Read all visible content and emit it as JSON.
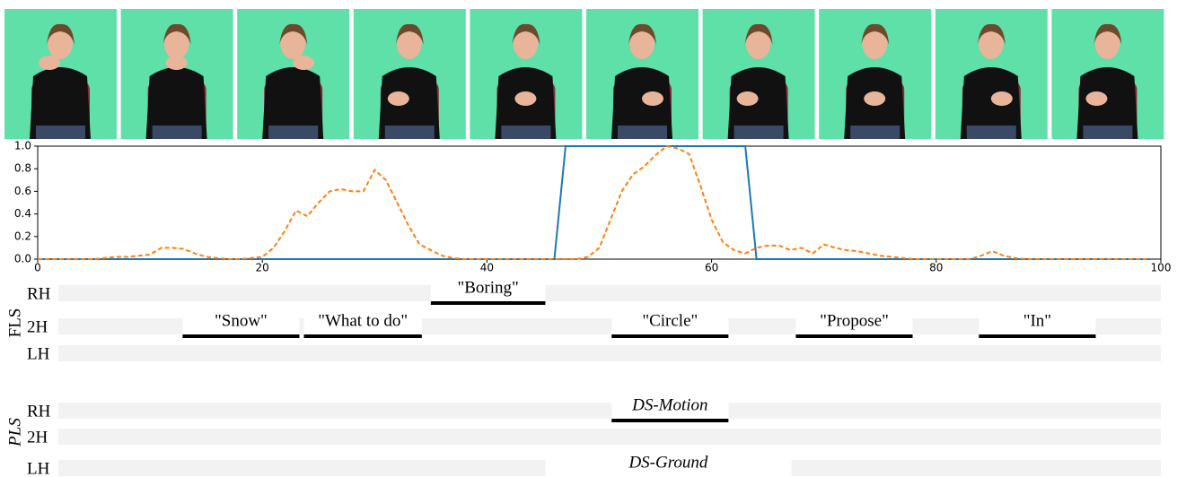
{
  "chart_data": {
    "type": "line",
    "x": [
      0,
      1,
      2,
      3,
      4,
      5,
      6,
      7,
      8,
      9,
      10,
      11,
      12,
      13,
      14,
      15,
      16,
      17,
      18,
      19,
      20,
      21,
      22,
      23,
      24,
      25,
      26,
      27,
      28,
      29,
      30,
      31,
      32,
      33,
      34,
      35,
      36,
      37,
      38,
      39,
      40,
      41,
      42,
      43,
      44,
      45,
      46,
      47,
      48,
      49,
      50,
      51,
      52,
      53,
      54,
      55,
      56,
      57,
      58,
      59,
      60,
      61,
      62,
      63,
      64,
      65,
      66,
      67,
      68,
      69,
      70,
      71,
      72,
      73,
      74,
      75,
      76,
      77,
      78,
      79,
      80,
      81,
      82,
      83,
      84,
      85,
      86,
      87,
      88,
      89,
      90,
      91,
      92,
      93,
      94,
      95,
      96,
      97,
      98,
      99
    ],
    "xlim": [
      0,
      100
    ],
    "xticks": [
      0,
      20,
      40,
      60,
      80,
      100
    ],
    "ylim": [
      0,
      1
    ],
    "yticks": [
      {
        "value": 0,
        "label": "0.0"
      },
      0.2,
      0.4,
      0.6,
      0.8,
      {
        "value": 1,
        "label": "1.0"
      }
    ],
    "series": [
      {
        "color": "#1f77b4",
        "dash": false,
        "values": [
          0,
          0,
          0,
          0,
          0,
          0,
          0,
          0,
          0,
          0,
          0,
          0,
          0,
          0,
          0,
          0,
          0,
          0,
          0,
          0,
          0,
          0,
          0,
          0,
          0,
          0,
          0,
          0,
          0,
          0,
          0,
          0,
          0,
          0,
          0,
          0,
          0,
          0,
          0,
          0,
          0,
          0,
          0,
          0,
          0,
          0,
          0,
          1,
          1,
          1,
          1,
          1,
          1,
          1,
          1,
          1,
          1,
          1,
          1,
          1,
          1,
          1,
          1,
          1,
          0,
          0,
          0,
          0,
          0,
          0,
          0,
          0,
          0,
          0,
          0,
          0,
          0,
          0,
          0,
          0,
          0,
          0,
          0,
          0,
          0,
          0,
          0,
          0,
          0,
          0,
          0,
          0,
          0,
          0,
          0,
          0,
          0,
          0,
          0,
          0
        ]
      },
      {
        "color": "#ff7f0e",
        "dash": true,
        "values": [
          0,
          0,
          0,
          0,
          0,
          0,
          0.01,
          0.02,
          0.02,
          0.03,
          0.04,
          0.1,
          0.1,
          0.09,
          0.05,
          0.02,
          0.01,
          0,
          0,
          0.01,
          0.02,
          0.1,
          0.25,
          0.43,
          0.38,
          0.5,
          0.6,
          0.62,
          0.6,
          0.6,
          0.79,
          0.7,
          0.5,
          0.3,
          0.13,
          0.08,
          0.03,
          0.01,
          0,
          0,
          0,
          0,
          0,
          0,
          0,
          0,
          0,
          0,
          0,
          0.02,
          0.1,
          0.35,
          0.6,
          0.75,
          0.82,
          0.92,
          1,
          0.98,
          0.93,
          0.65,
          0.35,
          0.15,
          0.08,
          0.05,
          0.1,
          0.12,
          0.12,
          0.08,
          0.1,
          0.05,
          0.13,
          0.1,
          0.08,
          0.07,
          0.05,
          0.03,
          0.02,
          0.01,
          0,
          0,
          0,
          0,
          0,
          0,
          0.03,
          0.07,
          0.03,
          0.01,
          0,
          0,
          0,
          0,
          0,
          0,
          0,
          0,
          0,
          0,
          0,
          0
        ]
      }
    ]
  },
  "tracks": [
    {
      "label": "FLS",
      "italic": false,
      "rows": [
        {
          "label": "RH",
          "spans": [
            {
              "label": "\"Boring\"",
              "start": 35,
              "end": 45.2,
              "line": true
            }
          ]
        },
        {
          "label": "2H",
          "spans": [
            {
              "label": "\"Snow\"",
              "start": 12.9,
              "end": 23.3,
              "line": true
            },
            {
              "label": "\"What to do\"",
              "start": 23.7,
              "end": 34.2,
              "line": true
            },
            {
              "label": "\"Circle\"",
              "start": 51.1,
              "end": 61.5,
              "line": true
            },
            {
              "label": "\"Propose\"",
              "start": 67.5,
              "end": 77.9,
              "line": true
            },
            {
              "label": "\"In\"",
              "start": 83.8,
              "end": 94.2,
              "line": true
            }
          ]
        },
        {
          "label": "LH",
          "spans": []
        }
      ]
    },
    {
      "label": "PLS",
      "italic": true,
      "rows": [
        {
          "label": "RH",
          "spans": [
            {
              "label": "DS-Motion",
              "start": 51.1,
              "end": 61.5,
              "line": true
            }
          ]
        },
        {
          "label": "2H",
          "spans": []
        },
        {
          "label": "LH",
          "spans": [
            {
              "label": "DS-Ground",
              "start": 45.2,
              "end": 67.1,
              "line": false
            }
          ]
        }
      ]
    }
  ]
}
